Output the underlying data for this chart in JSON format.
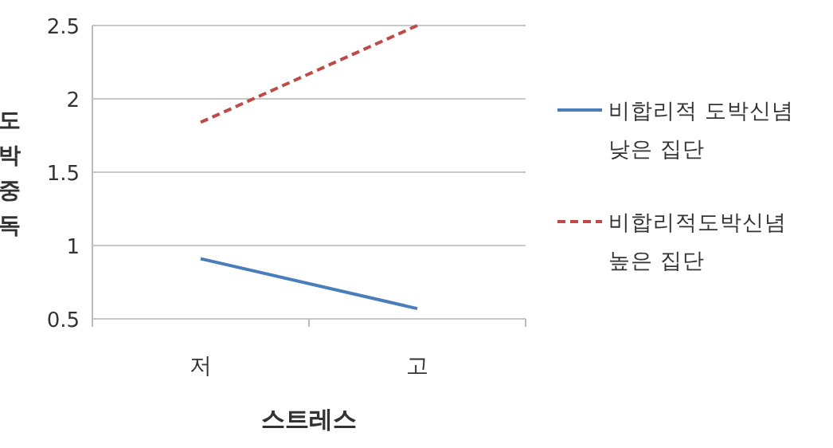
{
  "chart_data": {
    "type": "line",
    "xlabel": "스트레스",
    "ylabel": "도박중독",
    "categories": [
      "저",
      "고"
    ],
    "series": [
      {
        "name": "비합리적 도박신념\n낮은 집단",
        "color": "#4a7ebb",
        "values": [
          0.91,
          0.57
        ],
        "line_style": "solid"
      },
      {
        "name": "비합리적도박신념\n높은 집단",
        "color": "#be4b48",
        "values": [
          1.84,
          2.5
        ],
        "line_style": "dashed"
      }
    ],
    "ylim": [
      0.5,
      2.5
    ],
    "yticks": [
      0.5,
      1,
      1.5,
      2,
      2.5
    ],
    "grid": "y",
    "legend": "right",
    "marker": "none"
  }
}
